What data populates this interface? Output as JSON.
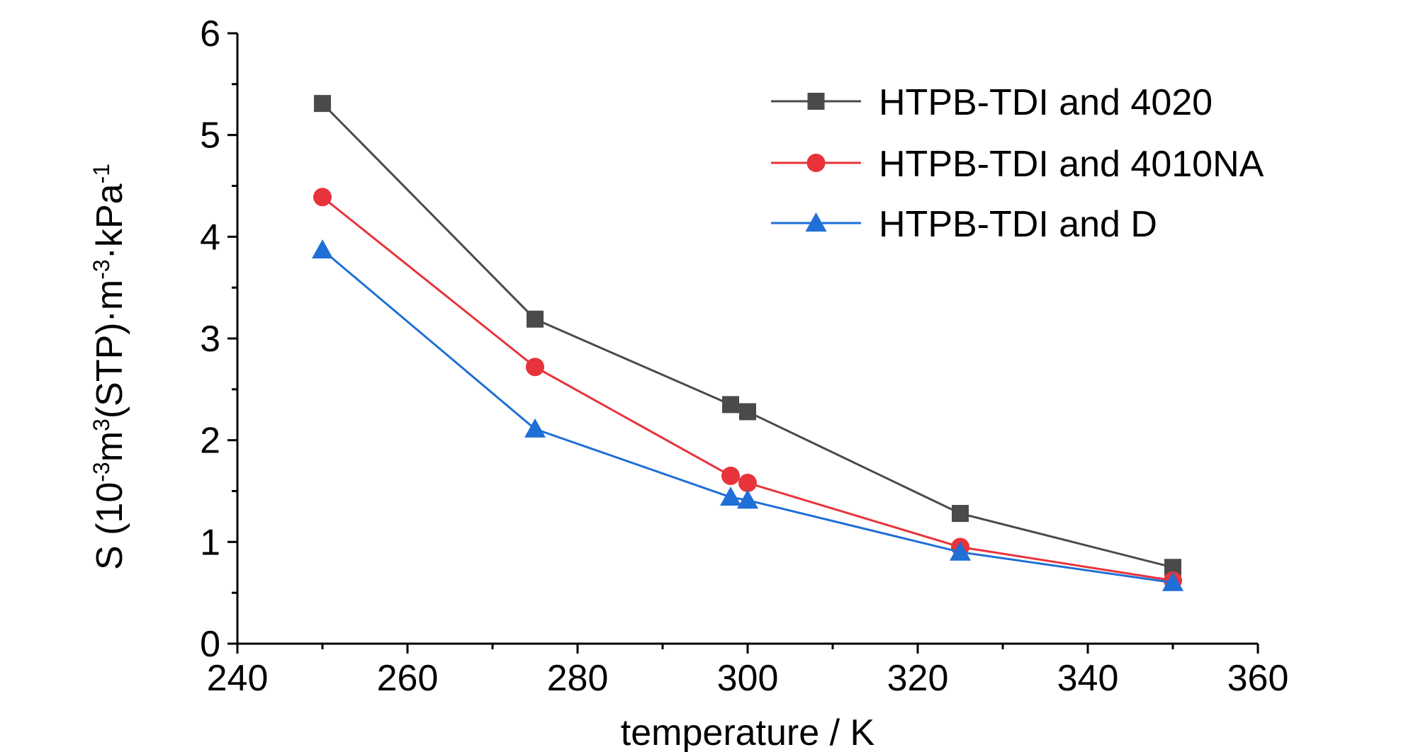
{
  "chart_data": {
    "type": "line",
    "xlabel": "temperature / K",
    "ylabel": {
      "parts": [
        {
          "text": "S (10",
          "sup": false
        },
        {
          "text": "-3",
          "sup": true
        },
        {
          "text": "m",
          "sup": false
        },
        {
          "text": "3",
          "sup": true
        },
        {
          "text": "(STP)·m",
          "sup": false
        },
        {
          "text": "-3",
          "sup": true
        },
        {
          "text": "·kPa",
          "sup": false
        },
        {
          "text": "-1",
          "sup": true
        }
      ]
    },
    "xlim": [
      240,
      360
    ],
    "ylim": [
      0,
      6
    ],
    "xticks": [
      240,
      260,
      280,
      300,
      320,
      340,
      360
    ],
    "yticks": [
      0,
      1,
      2,
      3,
      4,
      5,
      6
    ],
    "grid": false,
    "legend_position": "top-right",
    "series": [
      {
        "name": "HTPB-TDI and 4020",
        "color": "#4a4a4a",
        "marker": "square",
        "x": [
          250,
          275,
          298,
          300,
          325,
          350
        ],
        "y": [
          5.31,
          3.19,
          2.35,
          2.28,
          1.28,
          0.75
        ]
      },
      {
        "name": "HTPB-TDI and 4010NA",
        "color": "#e8333a",
        "marker": "circle",
        "x": [
          250,
          275,
          298,
          300,
          325,
          350
        ],
        "y": [
          4.39,
          2.72,
          1.65,
          1.58,
          0.95,
          0.62
        ]
      },
      {
        "name": "HTPB-TDI and D",
        "color": "#1f6fd6",
        "marker": "triangle",
        "x": [
          250,
          275,
          298,
          300,
          325,
          350
        ],
        "y": [
          3.87,
          2.11,
          1.44,
          1.41,
          0.9,
          0.6
        ]
      }
    ]
  }
}
